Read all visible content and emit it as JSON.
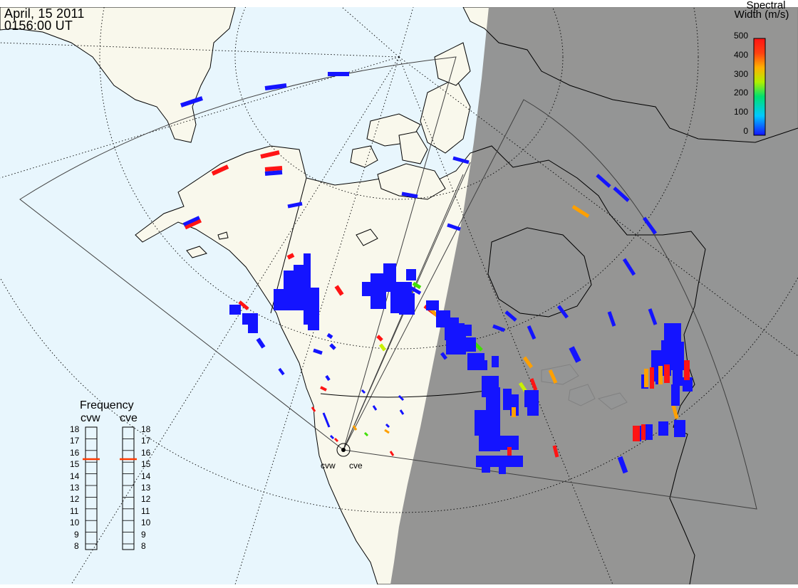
{
  "header": {
    "date": "April, 15 2011",
    "time": "0156:00 UT"
  },
  "colors": {
    "ocean": "#e8f6fd",
    "land": "#f9f8ec",
    "night": "#8c8c8c",
    "scatter_low": "#1414ff",
    "scatter_high": "#ff1414"
  },
  "colorbar": {
    "title_line1": "Spectral",
    "title_line2": "Width (m/s)",
    "ticks": [
      "500",
      "400",
      "300",
      "200",
      "100",
      "0"
    ],
    "min": 0,
    "max": 500
  },
  "frequency_panel": {
    "title": "Frequency",
    "radars": [
      {
        "name": "cvw",
        "value_mhz": 15.5
      },
      {
        "name": "cve",
        "value_mhz": 15.5
      }
    ],
    "ticks": [
      "18",
      "17",
      "16",
      "15",
      "14",
      "13",
      "12",
      "11",
      "10",
      "9",
      "8"
    ]
  },
  "radar_sites": [
    {
      "label": "cvw"
    },
    {
      "label": "cve"
    }
  ],
  "icons": {
    "site": "radar-site-icon"
  }
}
